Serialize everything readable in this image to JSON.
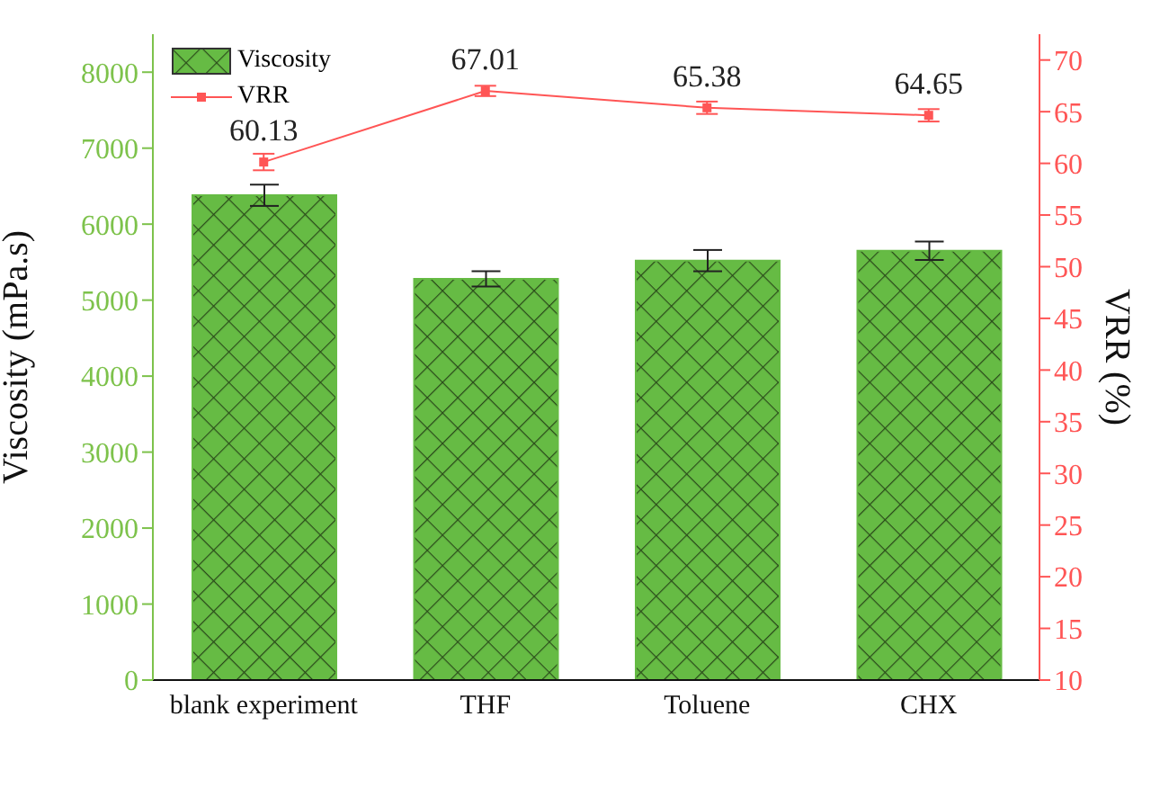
{
  "chart_data": {
    "type": "bar",
    "categories": [
      "blank experiment",
      "THF",
      "Toluene",
      "CHX"
    ],
    "ylabel": "Viscosity (mPa.s)",
    "y2label": "VRR (%)",
    "series": [
      {
        "name": "Viscosity",
        "color": "#66bb44",
        "values": [
          6380,
          5280,
          5520,
          5650
        ],
        "errors": [
          140,
          100,
          140,
          120
        ]
      },
      {
        "name": "VRR",
        "type": "line",
        "axis": "y2",
        "color": "#ff5555",
        "values": [
          60.13,
          67.01,
          65.38,
          64.65
        ],
        "errors": [
          0.8,
          0.5,
          0.6,
          0.6
        ],
        "data_labels": true,
        "marker": "square"
      }
    ],
    "ylim": [
      0,
      8500
    ],
    "yticks": [
      0,
      1000,
      2000,
      3000,
      4000,
      5000,
      6000,
      7000,
      8000
    ],
    "y2lim": [
      10,
      72.5
    ],
    "y2ticks": [
      10,
      15,
      20,
      25,
      30,
      35,
      40,
      45,
      50,
      55,
      60,
      65,
      70
    ],
    "legend": "top left",
    "grid": false
  }
}
